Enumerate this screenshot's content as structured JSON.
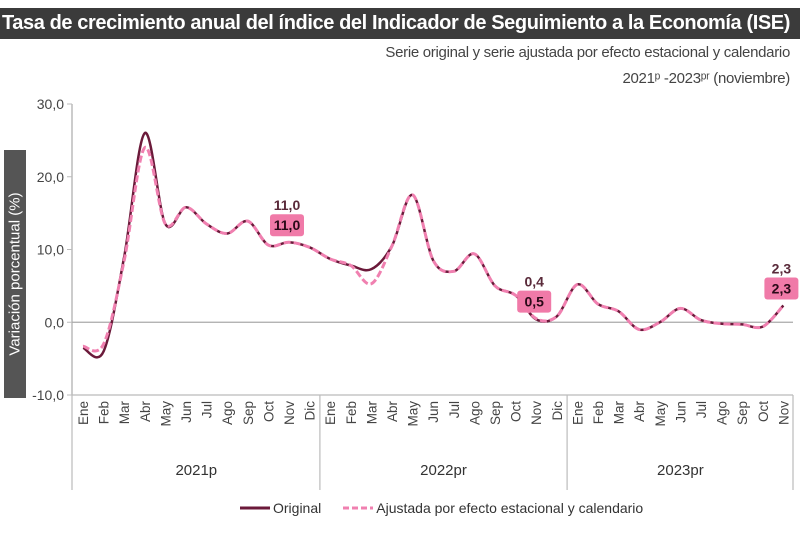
{
  "chart_data": {
    "type": "line",
    "title": "Tasa de crecimiento anual del índice del Indicador de Seguimiento a la Economía (ISE)",
    "subtitle": "Serie original y serie ajustada por efecto estacional y calendario",
    "period": "2021ᵖ -2023ᵖʳ (noviembre)",
    "ylabel": "Variación porcentual (%)",
    "ylim": [
      -10,
      30
    ],
    "yticks": [
      "-10,0",
      "0,0",
      "10,0",
      "20,0",
      "30,0"
    ],
    "ytick_values": [
      -10,
      0,
      10,
      20,
      30
    ],
    "years": [
      {
        "label": "2021p",
        "months": [
          "Ene",
          "Feb",
          "Mar",
          "Abr",
          "May",
          "Jun",
          "Jul",
          "Ago",
          "Sep",
          "Oct",
          "Nov",
          "Dic"
        ]
      },
      {
        "label": "2022pr",
        "months": [
          "Ene",
          "Feb",
          "Mar",
          "Abr",
          "May",
          "Jun",
          "Jul",
          "Ago",
          "Sep",
          "Oct",
          "Nov",
          "Dic"
        ]
      },
      {
        "label": "2023pr",
        "months": [
          "Ene",
          "Feb",
          "Mar",
          "Abr",
          "May",
          "Jun",
          "Jul",
          "Ago",
          "Sep",
          "Oct",
          "Nov"
        ]
      }
    ],
    "series": [
      {
        "name": "Original",
        "color": "#6b1a3a",
        "style": "solid",
        "values": [
          -3.5,
          -4.0,
          9.0,
          26.0,
          13.5,
          15.8,
          13.5,
          12.2,
          13.9,
          10.6,
          11.0,
          10.3,
          8.7,
          7.8,
          7.3,
          10.5,
          17.5,
          8.5,
          7.0,
          9.4,
          5.0,
          3.7,
          0.4,
          0.8,
          5.2,
          2.5,
          1.5,
          -1.0,
          0.0,
          1.9,
          0.3,
          -0.2,
          -0.3,
          -0.6,
          2.3
        ]
      },
      {
        "name": "Ajustada por efecto estacional y calendario",
        "color": "#f080b0",
        "style": "dashed",
        "values": [
          -3.3,
          -3.0,
          8.5,
          24.0,
          13.5,
          15.8,
          13.5,
          12.2,
          13.9,
          10.6,
          11.0,
          10.3,
          8.7,
          7.8,
          5.3,
          10.5,
          17.5,
          8.5,
          7.0,
          9.4,
          5.0,
          3.7,
          0.5,
          0.8,
          5.2,
          2.5,
          1.5,
          -1.0,
          0.0,
          1.9,
          0.3,
          -0.2,
          -0.3,
          -0.6,
          2.3
        ]
      }
    ],
    "annotations": [
      {
        "index": 10,
        "original": "11,0",
        "ajustada": "11,0"
      },
      {
        "index": 22,
        "original": "0,4",
        "ajustada": "0,5"
      },
      {
        "index": 34,
        "original": "2,3",
        "ajustada": "2,3"
      }
    ],
    "grid": false,
    "legend_position": "bottom"
  }
}
